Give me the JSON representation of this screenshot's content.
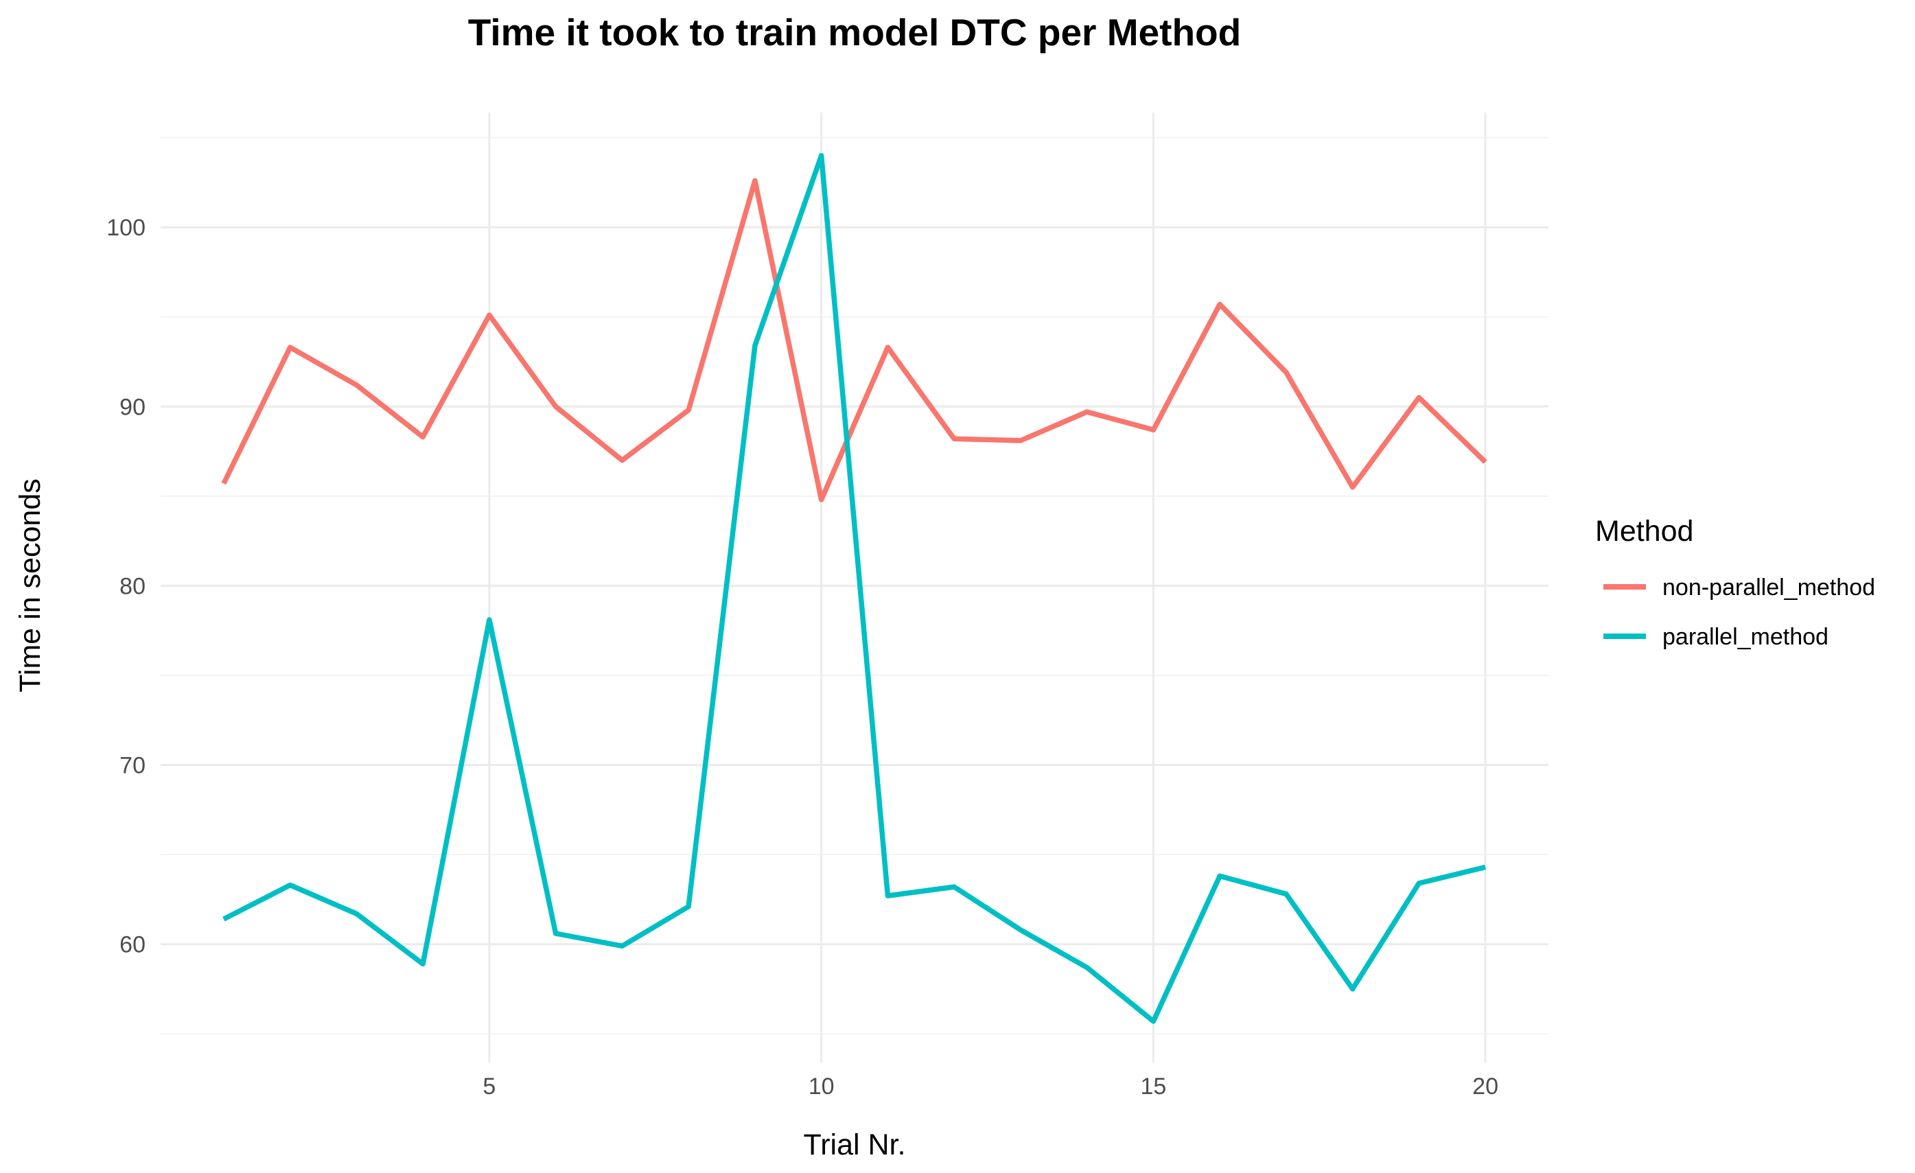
{
  "chart_data": {
    "type": "line",
    "title": "Time it took to train model DTC per Method",
    "xlabel": "Trial Nr.",
    "ylabel": "Time in seconds",
    "x": [
      1,
      2,
      3,
      4,
      5,
      6,
      7,
      8,
      9,
      10,
      11,
      12,
      13,
      14,
      15,
      16,
      17,
      18,
      19,
      20
    ],
    "xlim": [
      0.05,
      20.95
    ],
    "ylim": [
      53.4,
      106.4
    ],
    "x_ticks": [
      5,
      10,
      15,
      20
    ],
    "y_ticks": [
      60,
      70,
      80,
      90,
      100
    ],
    "grid": true,
    "legend": {
      "title": "Method",
      "position": "right"
    },
    "series": [
      {
        "name": "non-parallel_method",
        "color": "#F8766D",
        "values": [
          85.7,
          93.3,
          91.2,
          88.3,
          95.1,
          90.0,
          87.0,
          89.8,
          102.6,
          84.8,
          93.3,
          88.2,
          88.1,
          89.7,
          88.7,
          95.7,
          91.9,
          85.5,
          90.5,
          86.9
        ]
      },
      {
        "name": "parallel_method",
        "color": "#00BFC4",
        "values": [
          61.4,
          63.3,
          61.7,
          58.9,
          78.1,
          60.6,
          59.9,
          62.1,
          93.4,
          104.0,
          62.7,
          63.2,
          60.8,
          58.7,
          55.7,
          63.8,
          62.8,
          57.5,
          63.4,
          64.3
        ]
      }
    ]
  }
}
